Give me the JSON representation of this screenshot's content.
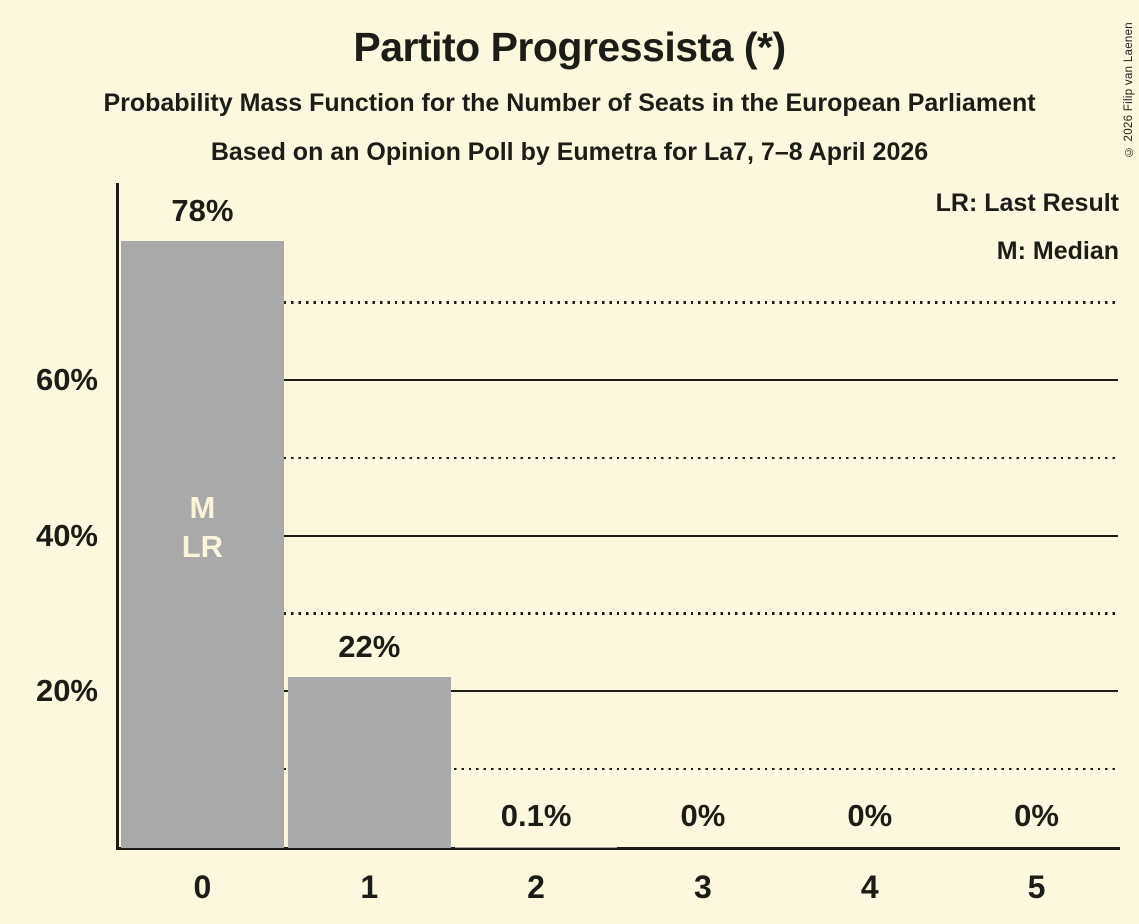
{
  "page": {
    "background_color": "#fcf7df",
    "text_color": "#1d1d18"
  },
  "copyright": "© 2026 Filip van Laenen",
  "chart_data": {
    "type": "bar",
    "title": "Partito Progressista (*)",
    "subtitle": "Probability Mass Function for the Number of Seats in the European Parliament",
    "source_line": "Based on an Opinion Poll by Eumetra for La7, 7–8 April 2026",
    "xlabel": "",
    "ylabel": "",
    "categories": [
      "0",
      "1",
      "2",
      "3",
      "4",
      "5"
    ],
    "values": [
      78,
      22,
      0.1,
      0,
      0,
      0
    ],
    "value_labels": [
      "78%",
      "22%",
      "0.1%",
      "0%",
      "0%",
      "0%"
    ],
    "ylim": [
      0,
      85.5
    ],
    "y_ticks": [
      {
        "value": 20,
        "label": "20%"
      },
      {
        "value": 40,
        "label": "40%"
      },
      {
        "value": 60,
        "label": "60%"
      }
    ],
    "gridlines": [
      {
        "value": 10,
        "style": "dotted"
      },
      {
        "value": 20,
        "style": "solid"
      },
      {
        "value": 30,
        "style": "dotted"
      },
      {
        "value": 40,
        "style": "solid"
      },
      {
        "value": 50,
        "style": "dotted"
      },
      {
        "value": 60,
        "style": "solid"
      },
      {
        "value": 70,
        "style": "dotted"
      }
    ],
    "grid": true,
    "legend_position": "top-right",
    "legend_entries": [
      "LR: Last Result",
      "M: Median"
    ],
    "bar_color": "#a9a9a9",
    "annotation_color": "#f9f4da",
    "bar_annotations": [
      {
        "bar_index": 0,
        "lines": [
          "M",
          "LR"
        ],
        "meaning": [
          "Median",
          "Last Result"
        ]
      }
    ]
  }
}
